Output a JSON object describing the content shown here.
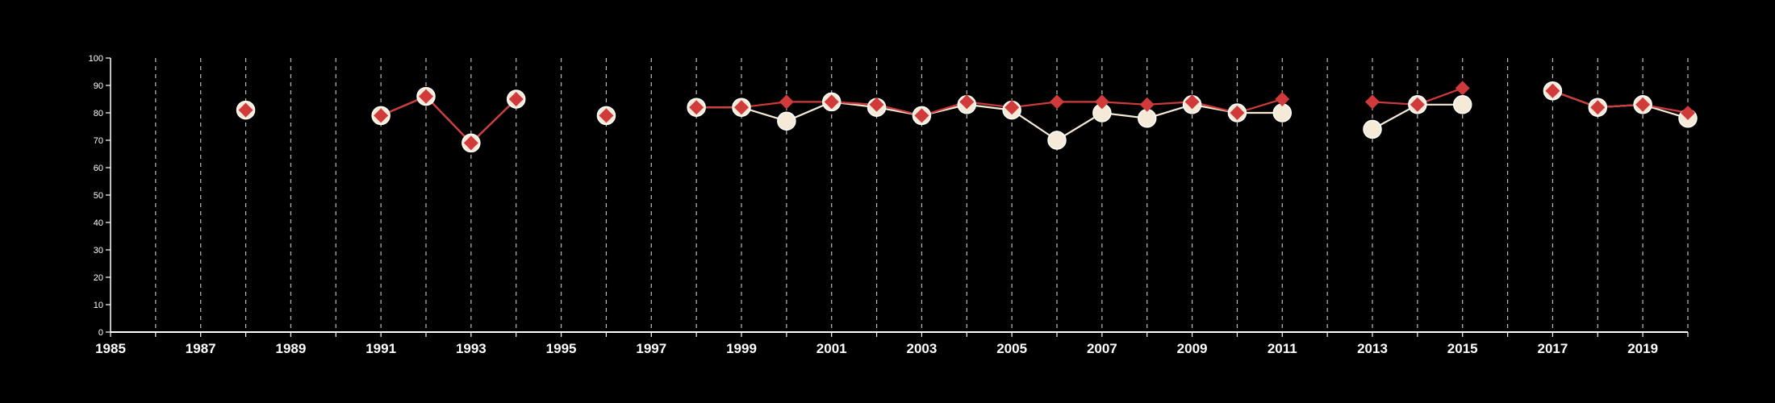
{
  "chart_data": {
    "type": "line",
    "title": "",
    "xlabel": "",
    "ylabel": "",
    "xlim": [
      1985,
      2020
    ],
    "ylim": [
      0,
      100
    ],
    "x_ticks": [
      1985,
      1987,
      1989,
      1991,
      1993,
      1995,
      1997,
      1999,
      2001,
      2003,
      2005,
      2007,
      2009,
      2011,
      2013,
      2015,
      2017,
      2019
    ],
    "x_tick_labels": [
      "1985",
      "1987",
      "1989",
      "1991",
      "1993",
      "1995",
      "1997",
      "1999",
      "2001",
      "2003",
      "2005",
      "2007",
      "2009",
      "2011",
      "2013",
      "2015",
      "2017",
      "2019"
    ],
    "y_ticks": [
      0,
      10,
      20,
      30,
      40,
      50,
      60,
      70,
      80,
      90,
      100
    ],
    "y_tick_labels": [
      "0",
      "10",
      "20",
      "30",
      "40",
      "50",
      "60",
      "70",
      "80",
      "90",
      "100"
    ],
    "vertical_grid": "dashed, every year",
    "legend": "none",
    "series": [
      {
        "marker": "circle",
        "color": "#f5ead8",
        "points": [
          [
            1988,
            81
          ],
          [
            1991,
            79
          ],
          [
            1992,
            86
          ],
          [
            1993,
            69
          ],
          [
            1994,
            85
          ],
          [
            1996,
            79
          ],
          [
            1998,
            82
          ],
          [
            1999,
            82
          ],
          [
            2000,
            77
          ],
          [
            2001,
            84
          ],
          [
            2002,
            82
          ],
          [
            2003,
            79
          ],
          [
            2004,
            83
          ],
          [
            2005,
            81
          ],
          [
            2006,
            70
          ],
          [
            2007,
            80
          ],
          [
            2008,
            78
          ],
          [
            2009,
            83
          ],
          [
            2010,
            80
          ],
          [
            2011,
            80
          ],
          [
            2013,
            74
          ],
          [
            2014,
            83
          ],
          [
            2015,
            83
          ],
          [
            2017,
            88
          ],
          [
            2018,
            82
          ],
          [
            2019,
            83
          ],
          [
            2020,
            78
          ]
        ]
      },
      {
        "marker": "diamond",
        "color": "#d03a3a",
        "points": [
          [
            1988,
            81
          ],
          [
            1991,
            79
          ],
          [
            1992,
            86
          ],
          [
            1993,
            69
          ],
          [
            1994,
            85
          ],
          [
            1996,
            79
          ],
          [
            1998,
            82
          ],
          [
            1999,
            82
          ],
          [
            2000,
            84
          ],
          [
            2001,
            84
          ],
          [
            2002,
            83
          ],
          [
            2003,
            79
          ],
          [
            2004,
            84
          ],
          [
            2005,
            82
          ],
          [
            2006,
            84
          ],
          [
            2007,
            84
          ],
          [
            2008,
            83
          ],
          [
            2009,
            84
          ],
          [
            2010,
            80
          ],
          [
            2011,
            85
          ],
          [
            2013,
            84
          ],
          [
            2014,
            83
          ],
          [
            2015,
            89
          ],
          [
            2017,
            88
          ],
          [
            2018,
            82
          ],
          [
            2019,
            83
          ],
          [
            2020,
            80
          ]
        ]
      }
    ]
  }
}
